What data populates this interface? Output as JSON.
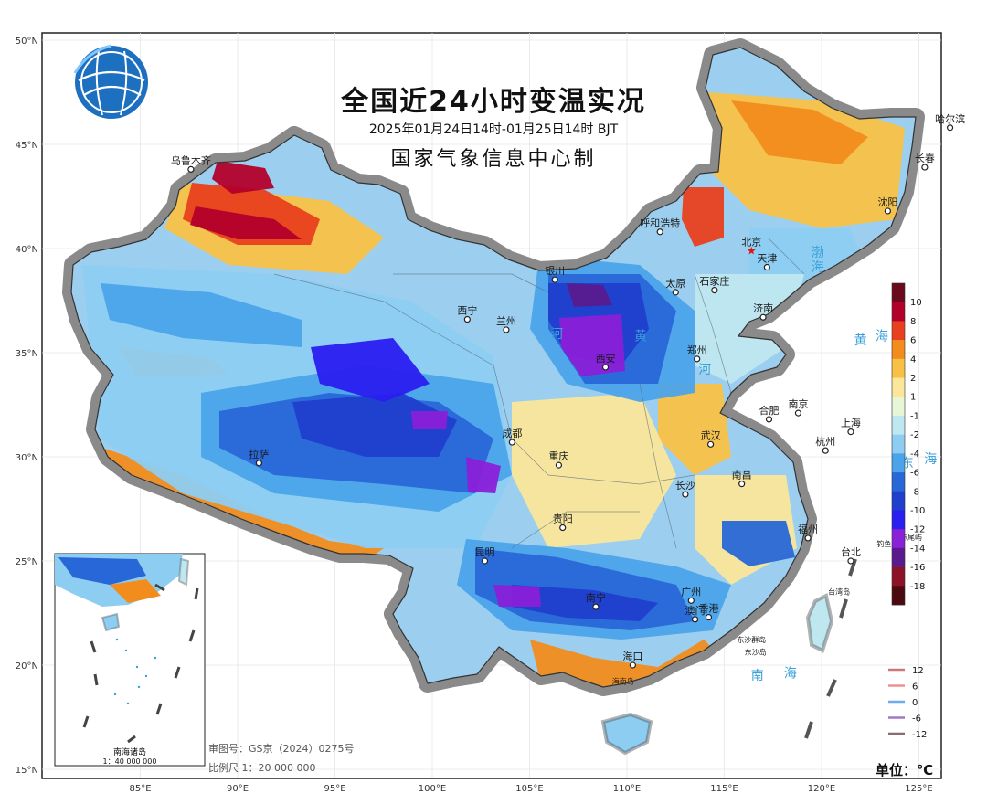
{
  "title": "全国近24小时变温实况",
  "time_range": "2025年01月24日14时-01月25日14时 BJT",
  "organization": "国家气象信息中心制",
  "review_number": "审图号：GS京（2024）0275号",
  "scale": "比例尺  1：20 000 000",
  "unit": "单位：℃",
  "inset": {
    "title": "南海诸岛",
    "scale": "1：40 000 000"
  },
  "latitude_labels": [
    "50°N",
    "45°N",
    "40°N",
    "35°N",
    "30°N",
    "25°N",
    "20°N",
    "15°N"
  ],
  "longitude_labels": [
    "85°E",
    "90°E",
    "95°E",
    "100°E",
    "105°E",
    "110°E",
    "115°E",
    "120°E",
    "125°E"
  ],
  "color_legend": [
    {
      "label": "10",
      "color": "#6b0a1a"
    },
    {
      "label": "8",
      "color": "#b3002a"
    },
    {
      "label": "6",
      "color": "#e8401e"
    },
    {
      "label": "4",
      "color": "#f28c1c"
    },
    {
      "label": "2",
      "color": "#f8c146"
    },
    {
      "label": "1",
      "color": "#fbe69a"
    },
    {
      "label": "-1",
      "color": "#e7f6d6"
    },
    {
      "label": "-2",
      "color": "#bfe7ef"
    },
    {
      "label": "-4",
      "color": "#8dcdf2"
    },
    {
      "label": "-6",
      "color": "#4ba3ea"
    },
    {
      "label": "-8",
      "color": "#2867d8"
    },
    {
      "label": "-10",
      "color": "#1f3fcd"
    },
    {
      "label": "-12",
      "color": "#2a1ef0"
    },
    {
      "label": "-14",
      "color": "#8a20d8"
    },
    {
      "label": "-16",
      "color": "#5a1a8e"
    },
    {
      "label": "-18",
      "color": "#8c1228"
    },
    {
      "label": "",
      "color": "#4a0a10"
    }
  ],
  "contour_legend": [
    {
      "label": "12",
      "color": "#c87878"
    },
    {
      "label": "6",
      "color": "#f09090"
    },
    {
      "label": "0",
      "color": "#6aaef0"
    },
    {
      "label": "-6",
      "color": "#a078c8"
    },
    {
      "label": "-12",
      "color": "#8a6e6e"
    }
  ],
  "cities": [
    {
      "name": "乌鲁木齐",
      "lon": 87.6,
      "lat": 43.8
    },
    {
      "name": "哈尔滨",
      "lon": 126.6,
      "lat": 45.8
    },
    {
      "name": "长春",
      "lon": 125.3,
      "lat": 43.9
    },
    {
      "name": "沈阳",
      "lon": 123.4,
      "lat": 41.8
    },
    {
      "name": "呼和浩特",
      "lon": 111.7,
      "lat": 40.8
    },
    {
      "name": "北京",
      "lon": 116.4,
      "lat": 39.9,
      "capital": true
    },
    {
      "name": "天津",
      "lon": 117.2,
      "lat": 39.1
    },
    {
      "name": "石家庄",
      "lon": 114.5,
      "lat": 38.0
    },
    {
      "name": "银川",
      "lon": 106.3,
      "lat": 38.5
    },
    {
      "name": "太原",
      "lon": 112.5,
      "lat": 37.9
    },
    {
      "name": "济南",
      "lon": 117.0,
      "lat": 36.7
    },
    {
      "name": "西宁",
      "lon": 101.8,
      "lat": 36.6
    },
    {
      "name": "兰州",
      "lon": 103.8,
      "lat": 36.1
    },
    {
      "name": "西安",
      "lon": 108.9,
      "lat": 34.3
    },
    {
      "name": "郑州",
      "lon": 113.6,
      "lat": 34.7
    },
    {
      "name": "合肥",
      "lon": 117.3,
      "lat": 31.8
    },
    {
      "name": "南京",
      "lon": 118.8,
      "lat": 32.1
    },
    {
      "name": "上海",
      "lon": 121.5,
      "lat": 31.2
    },
    {
      "name": "拉萨",
      "lon": 91.1,
      "lat": 29.7
    },
    {
      "name": "成都",
      "lon": 104.1,
      "lat": 30.7
    },
    {
      "name": "武汉",
      "lon": 114.3,
      "lat": 30.6
    },
    {
      "name": "重庆",
      "lon": 106.5,
      "lat": 29.6
    },
    {
      "name": "杭州",
      "lon": 120.2,
      "lat": 30.3
    },
    {
      "name": "长沙",
      "lon": 113.0,
      "lat": 28.2
    },
    {
      "name": "南昌",
      "lon": 115.9,
      "lat": 28.7
    },
    {
      "name": "贵阳",
      "lon": 106.7,
      "lat": 26.6
    },
    {
      "name": "福州",
      "lon": 119.3,
      "lat": 26.1
    },
    {
      "name": "台北",
      "lon": 121.5,
      "lat": 25.0
    },
    {
      "name": "昆明",
      "lon": 102.7,
      "lat": 25.0
    },
    {
      "name": "广州",
      "lon": 113.3,
      "lat": 23.1
    },
    {
      "name": "南宁",
      "lon": 108.4,
      "lat": 22.8
    },
    {
      "name": "香港",
      "lon": 114.2,
      "lat": 22.3
    },
    {
      "name": "澳门",
      "lon": 113.5,
      "lat": 22.2
    },
    {
      "name": "海口",
      "lon": 110.3,
      "lat": 20.0
    }
  ],
  "sea_labels": [
    {
      "name": "渤",
      "lon": 119.8,
      "lat": 39.6
    },
    {
      "name": "海",
      "lon": 119.8,
      "lat": 38.9
    },
    {
      "name": "黄",
      "lon": 122.0,
      "lat": 35.4
    },
    {
      "name": "海",
      "lon": 123.1,
      "lat": 35.6
    },
    {
      "name": "东",
      "lon": 124.4,
      "lat": 29.5
    },
    {
      "name": "海",
      "lon": 125.6,
      "lat": 29.7
    },
    {
      "name": "南",
      "lon": 116.7,
      "lat": 19.3
    },
    {
      "name": "海",
      "lon": 118.4,
      "lat": 19.4
    },
    {
      "name": "河",
      "lon": 106.4,
      "lat": 35.7
    },
    {
      "name": "黄",
      "lon": 110.7,
      "lat": 35.6
    },
    {
      "name": "河",
      "lon": 114.0,
      "lat": 34.0
    }
  ],
  "small_labels": [
    {
      "name": "钓鱼岛",
      "lon": 123.4,
      "lat": 25.7
    },
    {
      "name": "赤尾屿",
      "lon": 124.6,
      "lat": 26.0
    },
    {
      "name": "台湾岛",
      "lon": 120.9,
      "lat": 23.4
    },
    {
      "name": "东沙群岛",
      "lon": 116.4,
      "lat": 21.1
    },
    {
      "name": "东沙岛",
      "lon": 116.6,
      "lat": 20.5
    },
    {
      "name": "海南岛",
      "lon": 109.8,
      "lat": 19.1
    }
  ]
}
